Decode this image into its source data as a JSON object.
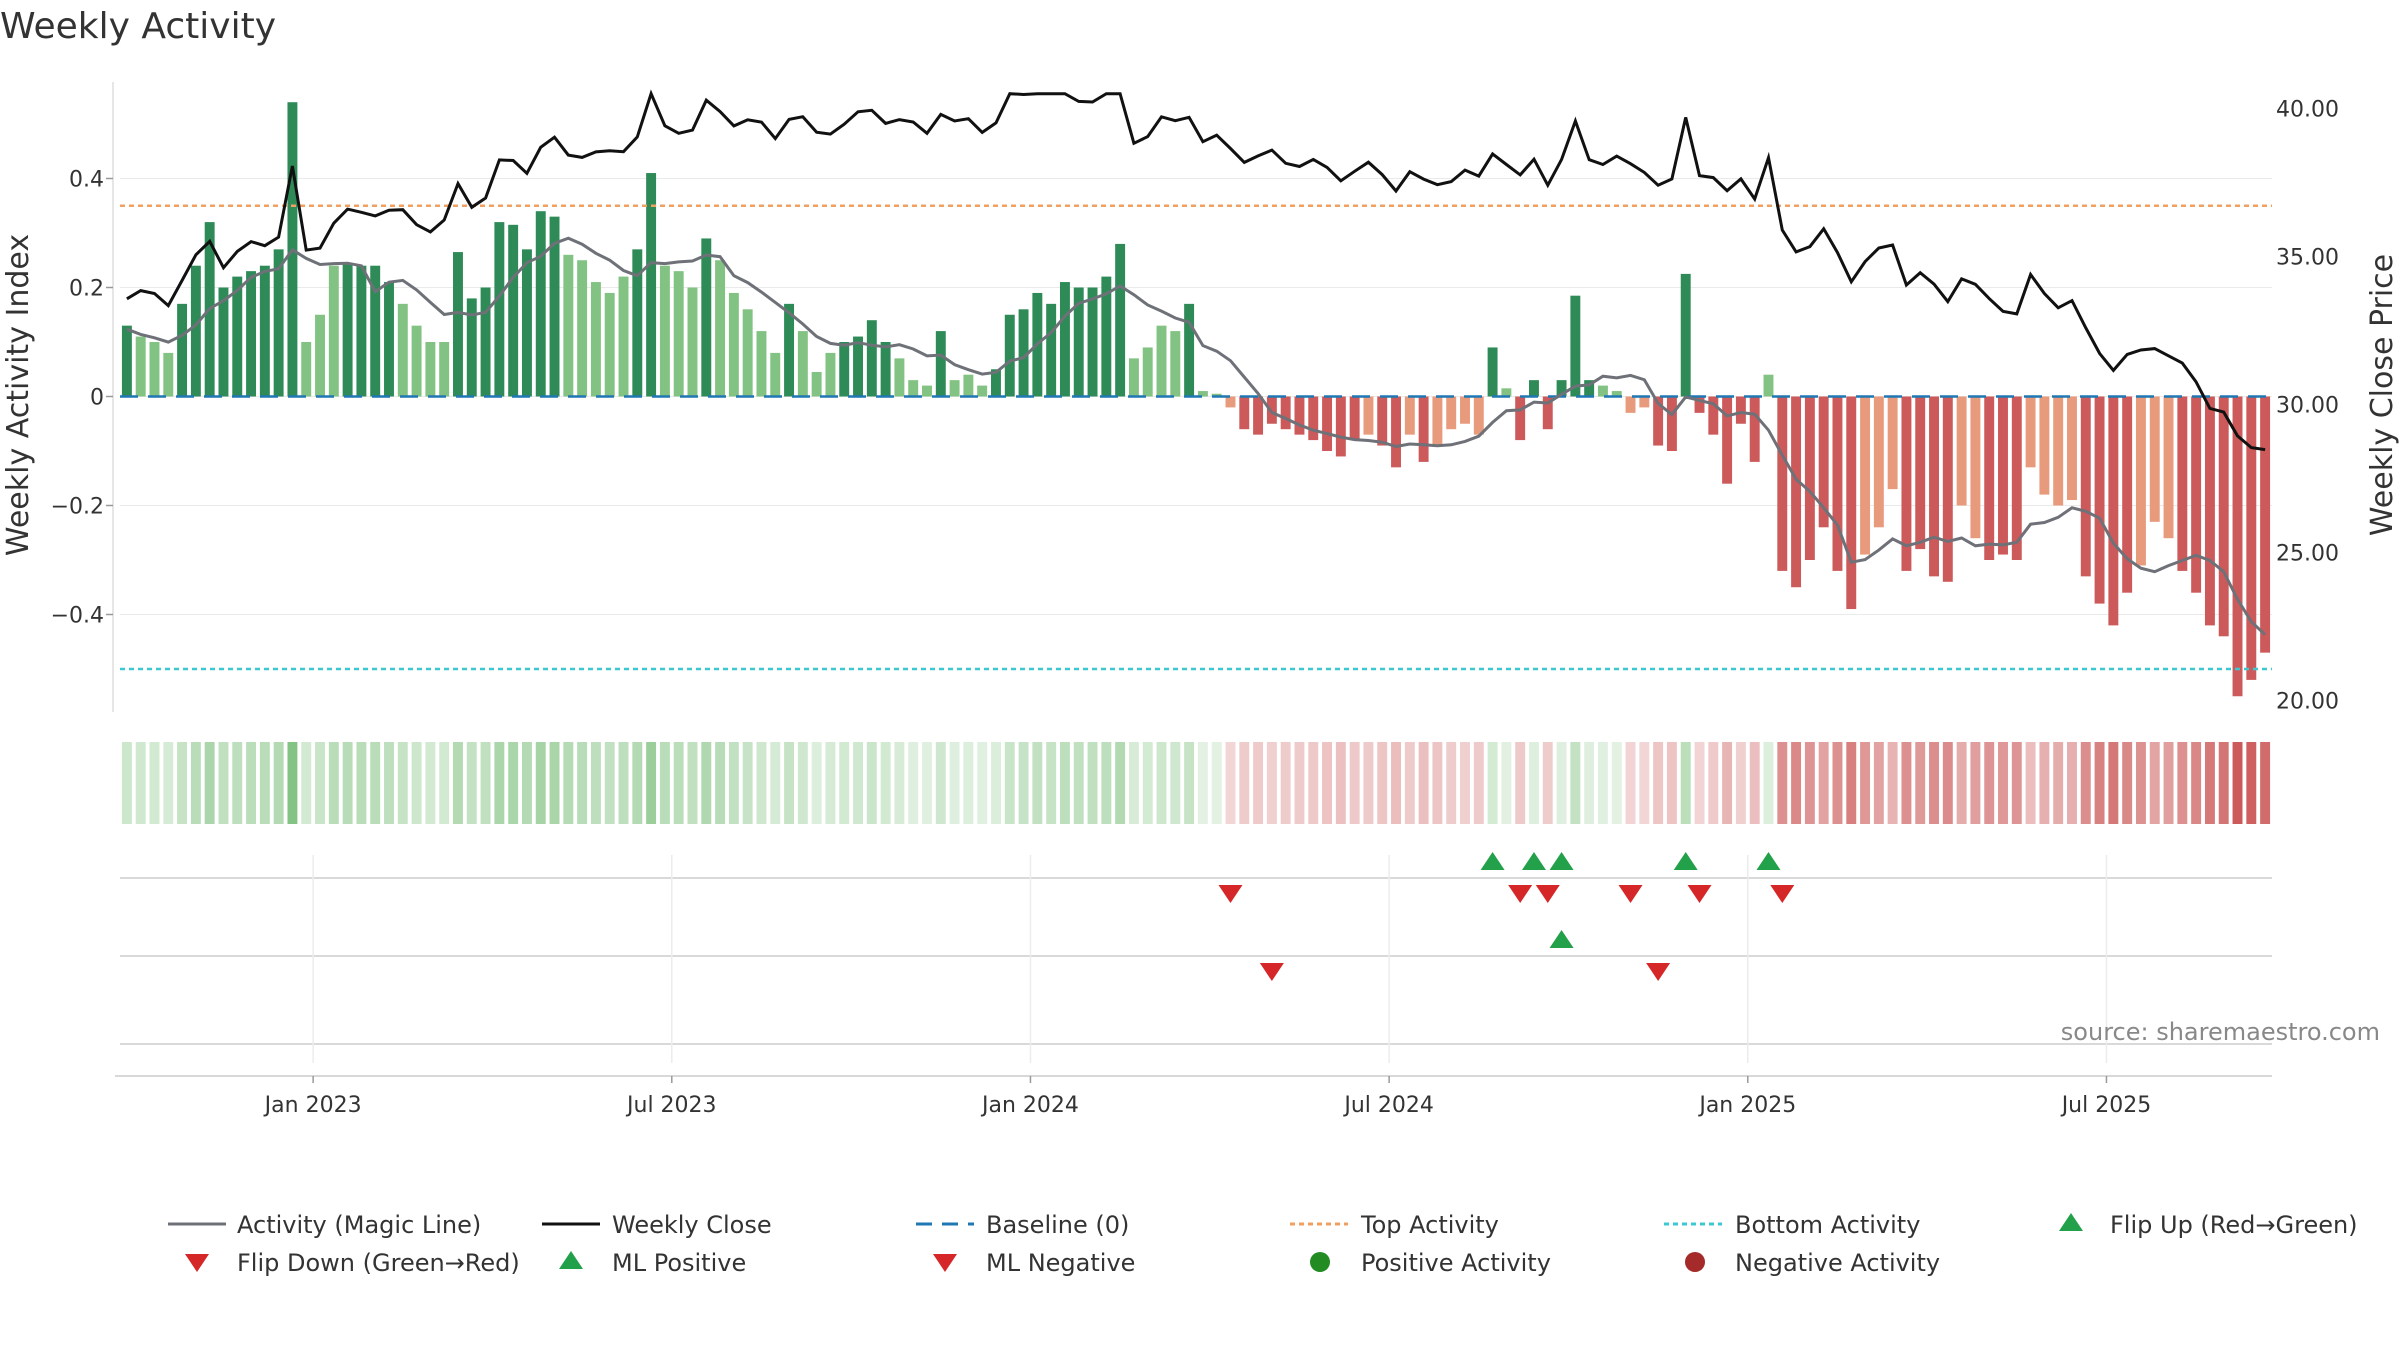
{
  "chart_data": {
    "type": "bar",
    "title": "Weekly Activity",
    "ylabel_left": "Weekly Activity Index",
    "ylabel_right": "Weekly Close Price",
    "ylim_left": [
      -0.58,
      0.58
    ],
    "ylim_right": [
      19.5,
      41.5
    ],
    "yticks_left": [
      {
        "v": 0.4,
        "label": "0.4"
      },
      {
        "v": 0.2,
        "label": "0.2"
      },
      {
        "v": 0,
        "label": "0"
      },
      {
        "v": -0.2,
        "label": "−0.2"
      },
      {
        "v": -0.4,
        "label": "−0.4"
      }
    ],
    "yticks_right": [
      {
        "v": 40,
        "label": "40.00"
      },
      {
        "v": 35,
        "label": "35.00"
      },
      {
        "v": 30,
        "label": "30.00"
      },
      {
        "v": 25,
        "label": "25.00"
      },
      {
        "v": 20,
        "label": "20.00"
      }
    ],
    "xticks": [
      {
        "week": 14,
        "label": "Jan 2023"
      },
      {
        "week": 40,
        "label": "Jul 2023"
      },
      {
        "week": 66,
        "label": "Jan 2024"
      },
      {
        "week": 92,
        "label": "Jul 2024"
      },
      {
        "week": 118,
        "label": "Jan 2025"
      },
      {
        "week": 144,
        "label": "Jul 2025"
      }
    ],
    "top_activity": 0.35,
    "bottom_activity": -0.5,
    "baseline": 0,
    "source": "source: sharemaestro.com",
    "activity": [
      0.13,
      0.11,
      0.1,
      0.08,
      0.17,
      0.24,
      0.32,
      0.2,
      0.22,
      0.23,
      0.24,
      0.27,
      0.54,
      0.1,
      0.15,
      0.24,
      0.245,
      0.24,
      0.24,
      0.21,
      0.17,
      0.13,
      0.1,
      0.1,
      0.265,
      0.18,
      0.2,
      0.32,
      0.315,
      0.27,
      0.34,
      0.33,
      0.26,
      0.25,
      0.21,
      0.19,
      0.22,
      0.27,
      0.41,
      0.24,
      0.23,
      0.2,
      0.29,
      0.25,
      0.19,
      0.16,
      0.12,
      0.08,
      0.17,
      0.12,
      0.045,
      0.08,
      0.1,
      0.11,
      0.14,
      0.1,
      0.07,
      0.03,
      0.02,
      0.12,
      0.03,
      0.04,
      0.02,
      0.05,
      0.15,
      0.16,
      0.19,
      0.17,
      0.21,
      0.2,
      0.2,
      0.22,
      0.28,
      0.07,
      0.09,
      0.13,
      0.12,
      0.17,
      0.01,
      0.005,
      -0.02,
      -0.06,
      -0.07,
      -0.05,
      -0.06,
      -0.07,
      -0.08,
      -0.1,
      -0.11,
      -0.08,
      -0.07,
      -0.09,
      -0.13,
      -0.07,
      -0.12,
      -0.09,
      -0.06,
      -0.05,
      -0.07,
      0.09,
      0.015,
      -0.08,
      0.03,
      -0.06,
      0.03,
      0.185,
      0.03,
      0.02,
      0.01,
      -0.03,
      -0.02,
      -0.09,
      -0.1,
      0.225,
      -0.03,
      -0.07,
      -0.16,
      -0.05,
      -0.12,
      0.04,
      -0.32,
      -0.35,
      -0.3,
      -0.24,
      -0.32,
      -0.39,
      -0.29,
      -0.24,
      -0.17,
      -0.32,
      -0.28,
      -0.33,
      -0.34,
      -0.2,
      -0.26,
      -0.3,
      -0.29,
      -0.3,
      -0.13,
      -0.18,
      -0.2,
      -0.19,
      -0.33,
      -0.38,
      -0.42,
      -0.36,
      -0.31,
      -0.23,
      -0.26,
      -0.32,
      -0.36,
      -0.42,
      -0.44,
      -0.55,
      -0.52,
      -0.47
    ]
  },
  "legend": {
    "magic_line": "Activity (Magic Line)",
    "weekly_close": "Weekly Close",
    "baseline": "Baseline (0)",
    "top_activity": "Top Activity",
    "bottom_activity": "Bottom Activity",
    "flip_up": "Flip Up (Red→Green)",
    "flip_down": "Flip Down (Green→Red)",
    "ml_positive": "ML Positive",
    "ml_negative": "ML Negative",
    "positive_activity": "Positive Activity",
    "negative_activity": "Negative Activity"
  },
  "colors": {
    "pos_strong": "#2e8b57",
    "pos_light": "#82c282",
    "neg_strong": "#cc5a5a",
    "neg_light": "#e89a7c",
    "magic_line": "#6e7178",
    "close_line": "#111111",
    "baseline": "#1f77b4",
    "top": "#f0a060",
    "bottom": "#3cc8d0",
    "marker_up": "#22a04a",
    "marker_down": "#d62728",
    "dot_pos": "#228b22",
    "dot_neg": "#a52a2a"
  }
}
